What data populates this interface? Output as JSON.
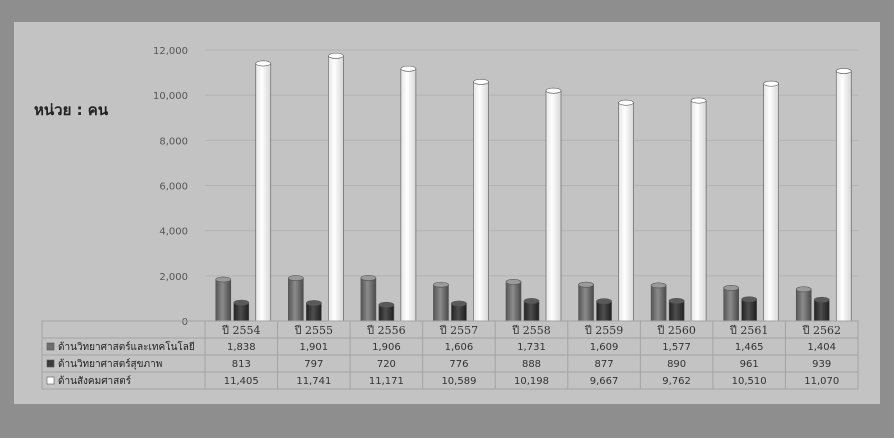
{
  "unit_label": "หน่วย : คน",
  "chart_data": {
    "type": "bar",
    "ylim": [
      0,
      12000
    ],
    "yticks": [
      "0",
      "2,000",
      "4,000",
      "6,000",
      "8,000",
      "10,000",
      "12,000"
    ],
    "ytick_values": [
      0,
      2000,
      4000,
      6000,
      8000,
      10000,
      12000
    ],
    "grid": true,
    "categories": [
      "ปี 2554",
      "ปี 2555",
      "ปี 2556",
      "ปี 2557",
      "ปี 2558",
      "ปี 2559",
      "ปี 2560",
      "ปี 2561",
      "ปี 2562"
    ],
    "series": [
      {
        "name": "ด้านวิทยาศาสตร์และเทคโนโลยี",
        "color": "#6e6e6e",
        "values": [
          1838,
          1901,
          1906,
          1606,
          1731,
          1609,
          1577,
          1465,
          1404
        ],
        "labels": [
          "1,838",
          "1,901",
          "1,906",
          "1,606",
          "1,731",
          "1,609",
          "1,577",
          "1,465",
          "1,404"
        ]
      },
      {
        "name": "ด้านวิทยาศาสตร์สุขภาพ",
        "color": "#3a3a3a",
        "values": [
          813,
          797,
          720,
          776,
          888,
          877,
          890,
          961,
          939
        ],
        "labels": [
          "813",
          "797",
          "720",
          "776",
          "888",
          "877",
          "890",
          "961",
          "939"
        ]
      },
      {
        "name": "ด้านสังคมศาสตร์",
        "color": "#ffffff",
        "values": [
          11405,
          11741,
          11171,
          10589,
          10198,
          9667,
          9762,
          10510,
          11070
        ],
        "labels": [
          "11,405",
          "11,741",
          "11,171",
          "10,589",
          "10,198",
          "9,667",
          "9,762",
          "10,510",
          "11,070"
        ]
      }
    ]
  }
}
